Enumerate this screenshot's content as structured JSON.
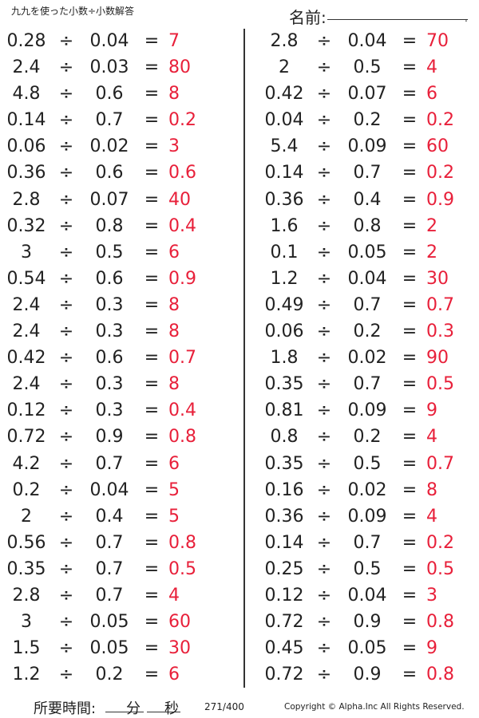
{
  "header": {
    "title": "九九を使った小数÷小数解答",
    "name_label": "名前:",
    "name_dot": "."
  },
  "left": [
    {
      "a": "0.28",
      "op": "÷",
      "b": "0.04",
      "eq": "=",
      "ans": "7"
    },
    {
      "a": "2.4",
      "op": "÷",
      "b": "0.03",
      "eq": "=",
      "ans": "80"
    },
    {
      "a": "4.8",
      "op": "÷",
      "b": "0.6",
      "eq": "=",
      "ans": "8"
    },
    {
      "a": "0.14",
      "op": "÷",
      "b": "0.7",
      "eq": "=",
      "ans": "0.2"
    },
    {
      "a": "0.06",
      "op": "÷",
      "b": "0.02",
      "eq": "=",
      "ans": "3"
    },
    {
      "a": "0.36",
      "op": "÷",
      "b": "0.6",
      "eq": "=",
      "ans": "0.6"
    },
    {
      "a": "2.8",
      "op": "÷",
      "b": "0.07",
      "eq": "=",
      "ans": "40"
    },
    {
      "a": "0.32",
      "op": "÷",
      "b": "0.8",
      "eq": "=",
      "ans": "0.4"
    },
    {
      "a": "3",
      "op": "÷",
      "b": "0.5",
      "eq": "=",
      "ans": "6"
    },
    {
      "a": "0.54",
      "op": "÷",
      "b": "0.6",
      "eq": "=",
      "ans": "0.9"
    },
    {
      "a": "2.4",
      "op": "÷",
      "b": "0.3",
      "eq": "=",
      "ans": "8"
    },
    {
      "a": "2.4",
      "op": "÷",
      "b": "0.3",
      "eq": "=",
      "ans": "8"
    },
    {
      "a": "0.42",
      "op": "÷",
      "b": "0.6",
      "eq": "=",
      "ans": "0.7"
    },
    {
      "a": "2.4",
      "op": "÷",
      "b": "0.3",
      "eq": "=",
      "ans": "8"
    },
    {
      "a": "0.12",
      "op": "÷",
      "b": "0.3",
      "eq": "=",
      "ans": "0.4"
    },
    {
      "a": "0.72",
      "op": "÷",
      "b": "0.9",
      "eq": "=",
      "ans": "0.8"
    },
    {
      "a": "4.2",
      "op": "÷",
      "b": "0.7",
      "eq": "=",
      "ans": "6"
    },
    {
      "a": "0.2",
      "op": "÷",
      "b": "0.04",
      "eq": "=",
      "ans": "5"
    },
    {
      "a": "2",
      "op": "÷",
      "b": "0.4",
      "eq": "=",
      "ans": "5"
    },
    {
      "a": "0.56",
      "op": "÷",
      "b": "0.7",
      "eq": "=",
      "ans": "0.8"
    },
    {
      "a": "0.35",
      "op": "÷",
      "b": "0.7",
      "eq": "=",
      "ans": "0.5"
    },
    {
      "a": "2.8",
      "op": "÷",
      "b": "0.7",
      "eq": "=",
      "ans": "4"
    },
    {
      "a": "3",
      "op": "÷",
      "b": "0.05",
      "eq": "=",
      "ans": "60"
    },
    {
      "a": "1.5",
      "op": "÷",
      "b": "0.05",
      "eq": "=",
      "ans": "30"
    },
    {
      "a": "1.2",
      "op": "÷",
      "b": "0.2",
      "eq": "=",
      "ans": "6"
    }
  ],
  "right": [
    {
      "a": "2.8",
      "op": "÷",
      "b": "0.04",
      "eq": "=",
      "ans": "70"
    },
    {
      "a": "2",
      "op": "÷",
      "b": "0.5",
      "eq": "=",
      "ans": "4"
    },
    {
      "a": "0.42",
      "op": "÷",
      "b": "0.07",
      "eq": "=",
      "ans": "6"
    },
    {
      "a": "0.04",
      "op": "÷",
      "b": "0.2",
      "eq": "=",
      "ans": "0.2"
    },
    {
      "a": "5.4",
      "op": "÷",
      "b": "0.09",
      "eq": "=",
      "ans": "60"
    },
    {
      "a": "0.14",
      "op": "÷",
      "b": "0.7",
      "eq": "=",
      "ans": "0.2"
    },
    {
      "a": "0.36",
      "op": "÷",
      "b": "0.4",
      "eq": "=",
      "ans": "0.9"
    },
    {
      "a": "1.6",
      "op": "÷",
      "b": "0.8",
      "eq": "=",
      "ans": "2"
    },
    {
      "a": "0.1",
      "op": "÷",
      "b": "0.05",
      "eq": "=",
      "ans": "2"
    },
    {
      "a": "1.2",
      "op": "÷",
      "b": "0.04",
      "eq": "=",
      "ans": "30"
    },
    {
      "a": "0.49",
      "op": "÷",
      "b": "0.7",
      "eq": "=",
      "ans": "0.7"
    },
    {
      "a": "0.06",
      "op": "÷",
      "b": "0.2",
      "eq": "=",
      "ans": "0.3"
    },
    {
      "a": "1.8",
      "op": "÷",
      "b": "0.02",
      "eq": "=",
      "ans": "90"
    },
    {
      "a": "0.35",
      "op": "÷",
      "b": "0.7",
      "eq": "=",
      "ans": "0.5"
    },
    {
      "a": "0.81",
      "op": "÷",
      "b": "0.09",
      "eq": "=",
      "ans": "9"
    },
    {
      "a": "0.8",
      "op": "÷",
      "b": "0.2",
      "eq": "=",
      "ans": "4"
    },
    {
      "a": "0.35",
      "op": "÷",
      "b": "0.5",
      "eq": "=",
      "ans": "0.7"
    },
    {
      "a": "0.16",
      "op": "÷",
      "b": "0.02",
      "eq": "=",
      "ans": "8"
    },
    {
      "a": "0.36",
      "op": "÷",
      "b": "0.09",
      "eq": "=",
      "ans": "4"
    },
    {
      "a": "0.14",
      "op": "÷",
      "b": "0.7",
      "eq": "=",
      "ans": "0.2"
    },
    {
      "a": "0.25",
      "op": "÷",
      "b": "0.5",
      "eq": "=",
      "ans": "0.5"
    },
    {
      "a": "0.12",
      "op": "÷",
      "b": "0.04",
      "eq": "=",
      "ans": "3"
    },
    {
      "a": "0.72",
      "op": "÷",
      "b": "0.9",
      "eq": "=",
      "ans": "0.8"
    },
    {
      "a": "0.45",
      "op": "÷",
      "b": "0.05",
      "eq": "=",
      "ans": "9"
    },
    {
      "a": "0.72",
      "op": "÷",
      "b": "0.9",
      "eq": "=",
      "ans": "0.8"
    }
  ],
  "footer": {
    "time_label": "所要時間:",
    "minutes": "分",
    "seconds": "秒",
    "page": "271/400",
    "copyright": "Copyright © Alpha.Inc All Rights Reserved."
  },
  "colors": {
    "answer": "#e8203a",
    "text": "#222222"
  }
}
